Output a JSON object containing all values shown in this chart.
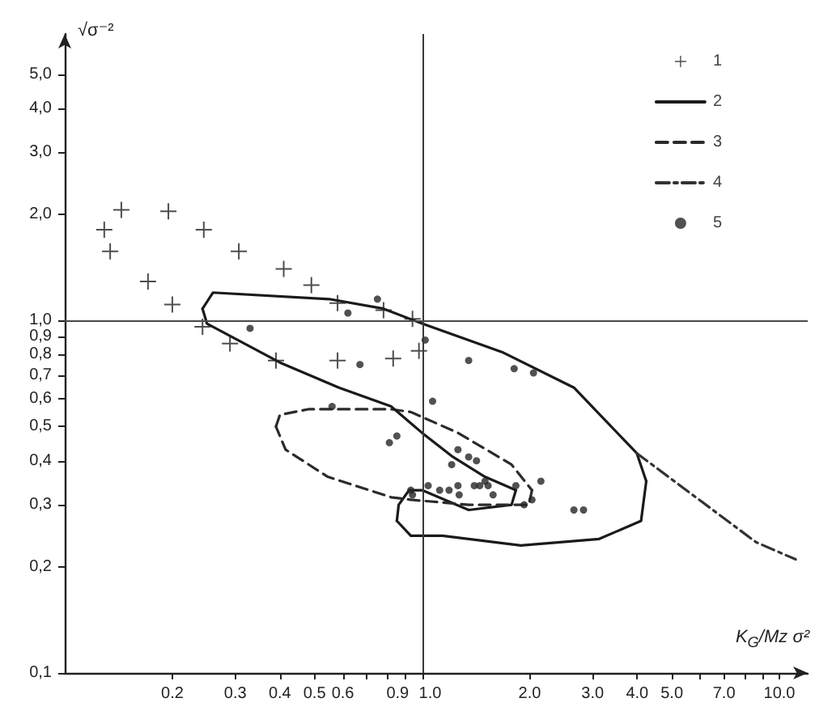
{
  "chart_data": {
    "type": "scatter",
    "xlabel": "K$_{G}$/Mz σ²",
    "ylabel": "√σ⁻²",
    "log": "xy",
    "xlim": [
      0.1,
      12
    ],
    "ylim": [
      0.1,
      6.5
    ],
    "xticks": [
      0.2,
      0.3,
      0.4,
      0.5,
      0.6,
      {
        "value": 0.7,
        "label": null
      },
      {
        "value": 0.8,
        "label": null
      },
      0.9,
      {
        "value": 1,
        "label": "1.0"
      },
      {
        "value": 2,
        "label": "2.0"
      },
      {
        "value": 3,
        "label": "3.0"
      },
      {
        "value": 4,
        "label": "4.0"
      },
      {
        "value": 5,
        "label": "5.0"
      },
      {
        "value": 6,
        "label": null
      },
      {
        "value": 7,
        "label": "7.0"
      },
      {
        "value": 8,
        "label": null
      },
      {
        "value": 9,
        "label": null
      },
      {
        "value": 10,
        "label": "10.0"
      }
    ],
    "yticks": [
      {
        "value": 0.1,
        "label": "0,1"
      },
      {
        "value": 0.2,
        "label": "0,2"
      },
      {
        "value": 0.3,
        "label": "0,3"
      },
      {
        "value": 0.4,
        "label": "0,4"
      },
      {
        "value": 0.5,
        "label": "0,5"
      },
      {
        "value": 0.6,
        "label": "0,6"
      },
      {
        "value": 0.7,
        "label": "0,7"
      },
      {
        "value": 0.8,
        "label": "0,8"
      },
      {
        "value": 0.9,
        "label": "0,9"
      },
      {
        "value": 1,
        "label": "1,0"
      },
      {
        "value": 2,
        "label": "2,0"
      },
      {
        "value": 3,
        "label": "3,0"
      },
      {
        "value": 4,
        "label": "4,0"
      },
      {
        "value": 5,
        "label": "5,0"
      }
    ],
    "grid": false,
    "legend": "top right",
    "ref_lines": [
      {
        "axis": "x",
        "value": 1,
        "color": "#3a3a3a"
      },
      {
        "axis": "y",
        "value": 1,
        "color": "#4a4a4a"
      }
    ],
    "series": [
      {
        "name": "1",
        "marker": "cross",
        "color": "#222222",
        "x": [
          0.129,
          0.134,
          0.144,
          0.171,
          0.195,
          0.2,
          0.245,
          0.243,
          0.307,
          0.41,
          0.49,
          0.58,
          0.78,
          0.94,
          0.29,
          0.39,
          0.58,
          0.83,
          0.98
        ],
        "values": [
          1.81,
          1.57,
          2.06,
          1.29,
          2.04,
          1.11,
          1.81,
          0.96,
          1.57,
          1.4,
          1.26,
          1.12,
          1.07,
          1.01,
          0.86,
          0.77,
          0.77,
          0.78,
          0.82
        ]
      },
      {
        "name": "2",
        "type": "line",
        "marker": "none",
        "line_style": "solid",
        "color": "#1a1a1a",
        "x": [
          0.243,
          0.26,
          0.55,
          0.78,
          1.0,
          1.69,
          2.66,
          3.99,
          4.24
        ],
        "values": [
          1.08,
          1.2,
          1.15,
          1.08,
          0.98,
          0.81,
          0.645,
          0.42,
          0.35
        ]
      },
      {
        "name": "3",
        "type": "line",
        "marker": "none",
        "line_style": "dashed",
        "color": "#2b2b2b",
        "x": [
          0.39,
          0.4,
          0.48,
          0.82,
          0.93,
          1.26,
          1.78,
          2.03
        ],
        "values": [
          0.5,
          0.54,
          0.56,
          0.56,
          0.55,
          0.48,
          0.39,
          0.33
        ]
      },
      {
        "name": "4",
        "type": "line",
        "marker": "none",
        "line_style": "dashdot",
        "color": "#333333",
        "x": [
          3.99,
          8.6,
          11.1
        ],
        "values": [
          0.42,
          0.235,
          0.21
        ]
      },
      {
        "type": "line",
        "marker": "none",
        "line_style": "solid",
        "color": "#1a1a1a",
        "x": [
          4.24,
          4.1,
          3.13,
          1.89,
          1.14,
          0.93,
          0.85
        ],
        "values": [
          0.35,
          0.27,
          0.24,
          0.23,
          0.245,
          0.245,
          0.27
        ]
      },
      {
        "type": "line",
        "marker": "none",
        "line_style": "solid",
        "color": "#1a1a1a",
        "x": [
          0.85,
          0.86,
          0.92,
          1.0,
          1.35,
          1.78,
          1.83
        ],
        "values": [
          0.27,
          0.3,
          0.33,
          0.33,
          0.29,
          0.3,
          0.33
        ]
      },
      {
        "type": "line",
        "marker": "none",
        "line_style": "solid",
        "color": "#1a1a1a",
        "x": [
          1.83,
          1.5,
          1.22,
          1.0,
          0.82,
          0.585,
          0.4,
          0.25,
          0.243
        ],
        "values": [
          0.33,
          0.36,
          0.41,
          0.48,
          0.57,
          0.645,
          0.76,
          0.98,
          1.08
        ]
      },
      {
        "type": "line",
        "marker": "none",
        "line_style": "dashed",
        "color": "#2b2b2b",
        "x": [
          2.03,
          1.99,
          1.35,
          0.93,
          0.82,
          0.545,
          0.415,
          0.39
        ],
        "values": [
          0.33,
          0.3,
          0.3,
          0.31,
          0.315,
          0.36,
          0.43,
          0.5
        ]
      },
      {
        "name": "5",
        "marker": "circle",
        "color": "#262626",
        "x": [
          0.33,
          0.62,
          0.75,
          0.67,
          0.56,
          0.81,
          0.85,
          0.94,
          1.02,
          1.35,
          1.81,
          2.05,
          1.07,
          1.26,
          1.35,
          1.42,
          1.21,
          1.04,
          1.12,
          1.19,
          1.26,
          1.27,
          1.4,
          1.45,
          1.5,
          1.53,
          1.58,
          1.83,
          2.15,
          2.03,
          1.93,
          2.66,
          2.83,
          0.93
        ],
        "values": [
          0.95,
          1.05,
          1.15,
          0.75,
          0.57,
          0.45,
          0.47,
          0.32,
          0.88,
          0.77,
          0.73,
          0.71,
          0.59,
          0.43,
          0.41,
          0.4,
          0.39,
          0.34,
          0.33,
          0.33,
          0.34,
          0.32,
          0.34,
          0.34,
          0.35,
          0.34,
          0.32,
          0.34,
          0.35,
          0.31,
          0.3,
          0.29,
          0.29,
          0.33
        ]
      }
    ]
  }
}
